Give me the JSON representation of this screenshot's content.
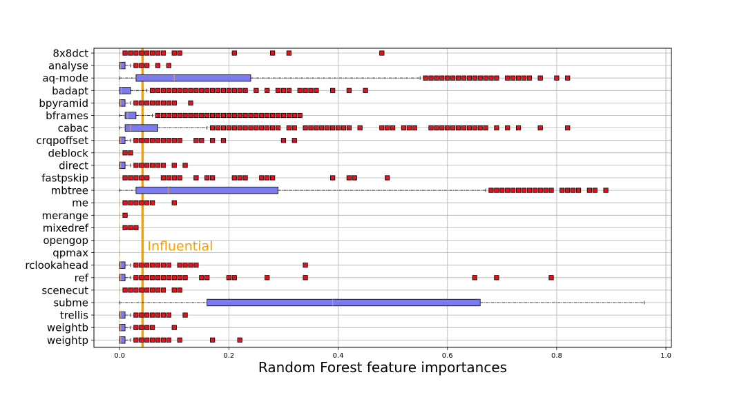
{
  "chart_data": {
    "type": "boxplot",
    "orientation": "horizontal",
    "xlabel": "Random Forest feature importances",
    "xlim": [
      -0.047,
      1.01
    ],
    "xticks": [
      0.0,
      0.2,
      0.4,
      0.6,
      0.8,
      1.0
    ],
    "xtick_labels": [
      "0.0",
      "0.2",
      "0.4",
      "0.6",
      "0.8",
      "1.0"
    ],
    "grid": true,
    "threshold": {
      "value": 0.042,
      "label": "Influential",
      "color": "#f5a000"
    },
    "colors": {
      "box_fill": "#7b7bf0",
      "median": "#e8a050",
      "flier": "#e0141e",
      "threshold": "#f5a000"
    },
    "features": [
      {
        "name": "8x8dct",
        "box": null,
        "fliers": [
          0.01,
          0.02,
          0.03,
          0.04,
          0.05,
          0.06,
          0.07,
          0.08,
          0.1,
          0.11,
          0.21,
          0.28,
          0.31,
          0.48
        ]
      },
      {
        "name": "analyse",
        "box": [
          0,
          0,
          0.002,
          0.01,
          0.02
        ],
        "fliers": [
          0.03,
          0.04,
          0.05,
          0.07,
          0.09
        ]
      },
      {
        "name": "aq-mode",
        "box": [
          0,
          0.03,
          0.1,
          0.24,
          0.55
        ],
        "fliers": [
          0.56,
          0.57,
          0.58,
          0.59,
          0.6,
          0.61,
          0.62,
          0.63,
          0.64,
          0.65,
          0.66,
          0.67,
          0.68,
          0.69,
          0.71,
          0.72,
          0.73,
          0.74,
          0.75,
          0.77,
          0.8,
          0.82
        ]
      },
      {
        "name": "badapt",
        "box": [
          0,
          0,
          0.003,
          0.02,
          0.05
        ],
        "fliers": [
          0.06,
          0.07,
          0.08,
          0.09,
          0.1,
          0.11,
          0.12,
          0.13,
          0.14,
          0.15,
          0.16,
          0.17,
          0.18,
          0.19,
          0.2,
          0.21,
          0.22,
          0.23,
          0.25,
          0.27,
          0.29,
          0.3,
          0.31,
          0.33,
          0.34,
          0.35,
          0.36,
          0.39,
          0.42,
          0.45
        ]
      },
      {
        "name": "bpyramid",
        "box": [
          0,
          0,
          0.002,
          0.01,
          0.02
        ],
        "fliers": [
          0.03,
          0.04,
          0.05,
          0.06,
          0.07,
          0.08,
          0.09,
          0.1,
          0.13
        ]
      },
      {
        "name": "bframes",
        "box": [
          0,
          0.01,
          0.015,
          0.03,
          0.06
        ],
        "fliers": [
          0.07,
          0.08,
          0.09,
          0.1,
          0.11,
          0.12,
          0.13,
          0.14,
          0.15,
          0.16,
          0.17,
          0.18,
          0.19,
          0.2,
          0.21,
          0.22,
          0.23,
          0.24,
          0.25,
          0.26,
          0.27,
          0.28,
          0.29,
          0.3,
          0.31,
          0.32,
          0.33
        ]
      },
      {
        "name": "cabac",
        "box": [
          0,
          0.01,
          0.02,
          0.07,
          0.16
        ],
        "fliers": [
          0.17,
          0.18,
          0.19,
          0.2,
          0.21,
          0.22,
          0.23,
          0.24,
          0.25,
          0.26,
          0.27,
          0.28,
          0.29,
          0.31,
          0.32,
          0.34,
          0.35,
          0.36,
          0.37,
          0.38,
          0.39,
          0.4,
          0.41,
          0.42,
          0.44,
          0.48,
          0.49,
          0.5,
          0.52,
          0.53,
          0.54,
          0.57,
          0.58,
          0.59,
          0.6,
          0.61,
          0.62,
          0.63,
          0.64,
          0.65,
          0.66,
          0.67,
          0.69,
          0.71,
          0.73,
          0.77,
          0.82
        ]
      },
      {
        "name": "crqpoffset",
        "box": [
          0,
          0,
          0.002,
          0.01,
          0.02
        ],
        "fliers": [
          0.03,
          0.04,
          0.05,
          0.06,
          0.07,
          0.08,
          0.09,
          0.1,
          0.11,
          0.14,
          0.15,
          0.17,
          0.19,
          0.3,
          0.32
        ]
      },
      {
        "name": "deblock",
        "box": null,
        "fliers": [
          0.01,
          0.02
        ]
      },
      {
        "name": "direct",
        "box": [
          0,
          0,
          0.002,
          0.01,
          0.02
        ],
        "fliers": [
          0.03,
          0.04,
          0.05,
          0.06,
          0.07,
          0.08,
          0.1,
          0.12
        ]
      },
      {
        "name": "fastpskip",
        "box": null,
        "fliers": [
          0.01,
          0.02,
          0.03,
          0.04,
          0.05,
          0.08,
          0.09,
          0.1,
          0.11,
          0.14,
          0.16,
          0.17,
          0.21,
          0.22,
          0.23,
          0.26,
          0.27,
          0.28,
          0.39,
          0.42,
          0.43,
          0.49
        ]
      },
      {
        "name": "mbtree",
        "box": [
          0,
          0.03,
          0.09,
          0.29,
          0.67
        ],
        "fliers": [
          0.68,
          0.69,
          0.7,
          0.71,
          0.72,
          0.73,
          0.74,
          0.75,
          0.76,
          0.77,
          0.78,
          0.79,
          0.81,
          0.82,
          0.83,
          0.84,
          0.86,
          0.87,
          0.89
        ]
      },
      {
        "name": "me",
        "box": null,
        "fliers": [
          0.01,
          0.02,
          0.03,
          0.04,
          0.05,
          0.06,
          0.1
        ]
      },
      {
        "name": "merange",
        "box": null,
        "fliers": [
          0.01
        ]
      },
      {
        "name": "mixedref",
        "box": null,
        "fliers": [
          0.01,
          0.02,
          0.03
        ]
      },
      {
        "name": "opengop",
        "box": null,
        "fliers": []
      },
      {
        "name": "qpmax",
        "box": null,
        "fliers": []
      },
      {
        "name": "rclookahead",
        "box": [
          0,
          0,
          0.002,
          0.01,
          0.02
        ],
        "fliers": [
          0.03,
          0.04,
          0.05,
          0.06,
          0.07,
          0.08,
          0.09,
          0.11,
          0.12,
          0.13,
          0.14,
          0.34
        ]
      },
      {
        "name": "ref",
        "box": [
          0,
          0,
          0.002,
          0.01,
          0.02
        ],
        "fliers": [
          0.03,
          0.04,
          0.05,
          0.06,
          0.07,
          0.08,
          0.09,
          0.1,
          0.11,
          0.12,
          0.15,
          0.16,
          0.2,
          0.21,
          0.27,
          0.34,
          0.65,
          0.69,
          0.79
        ]
      },
      {
        "name": "scenecut",
        "box": null,
        "fliers": [
          0.01,
          0.02,
          0.03,
          0.04,
          0.05,
          0.06,
          0.07,
          0.08,
          0.1,
          0.11
        ]
      },
      {
        "name": "subme",
        "box": [
          0,
          0.16,
          0.39,
          0.66,
          0.96
        ],
        "fliers": []
      },
      {
        "name": "trellis",
        "box": [
          0,
          0,
          0.002,
          0.01,
          0.02
        ],
        "fliers": [
          0.03,
          0.04,
          0.05,
          0.06,
          0.07,
          0.08,
          0.09,
          0.12
        ]
      },
      {
        "name": "weightb",
        "box": [
          0,
          0,
          0.002,
          0.01,
          0.02
        ],
        "fliers": [
          0.03,
          0.04,
          0.05,
          0.06,
          0.1
        ]
      },
      {
        "name": "weightp",
        "box": [
          0,
          0,
          0.002,
          0.01,
          0.02
        ],
        "fliers": [
          0.03,
          0.04,
          0.05,
          0.06,
          0.07,
          0.08,
          0.09,
          0.11,
          0.17,
          0.22
        ]
      }
    ]
  }
}
